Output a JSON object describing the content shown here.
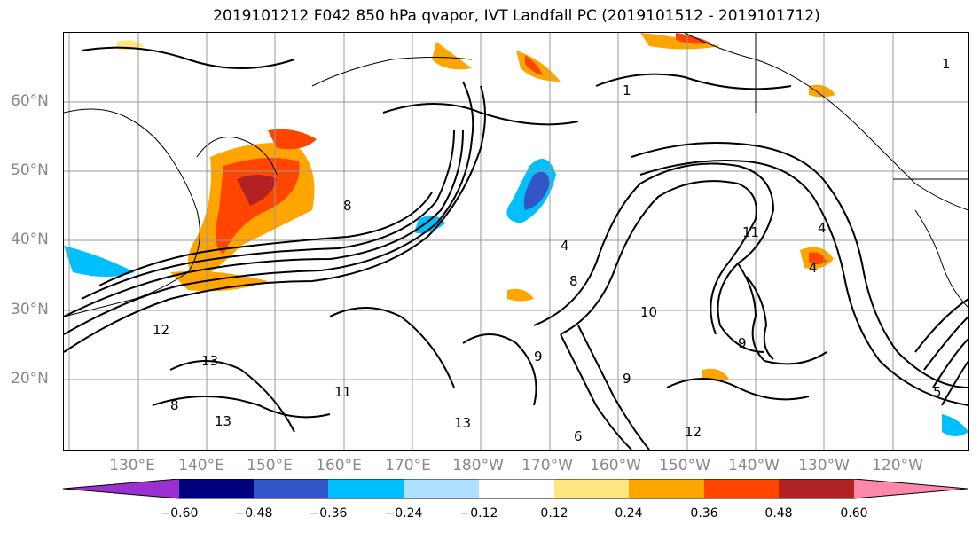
{
  "title": "2019101212 F042 850 hPa qvapor, IVT Landfall PC (2019101512 - 2019101712)",
  "lat_labels": [
    "60°N",
    "50°N",
    "40°N",
    "30°N",
    "20°N"
  ],
  "lon_labels": [
    "130°E",
    "140°E",
    "150°E",
    "160°E",
    "170°E",
    "180°W",
    "170°W",
    "160°W",
    "150°W",
    "140°W",
    "130°W",
    "120°W"
  ],
  "colorbar": {
    "ticks": [
      "−0.60",
      "−0.48",
      "−0.36",
      "−0.24",
      "−0.12",
      "0.12",
      "0.24",
      "0.36",
      "0.48",
      "0.60"
    ],
    "colors": [
      "#9b30d0",
      "#00007f",
      "#3255c8",
      "#00bfff",
      "#b0e0ff",
      "#ffffff",
      "#ffe680",
      "#ffa500",
      "#ff4500",
      "#b22222",
      "#ff88aa"
    ]
  },
  "contour_labels": [
    "13",
    "13",
    "12",
    "11",
    "11",
    "9",
    "9",
    "8",
    "8",
    "4",
    "4",
    "5",
    "1",
    "1",
    "6",
    "10",
    "9",
    "12",
    "13",
    "8",
    "4"
  ],
  "map_style": {
    "land_outline": "#000000",
    "gridline": "#999999",
    "contour": "#000000"
  }
}
